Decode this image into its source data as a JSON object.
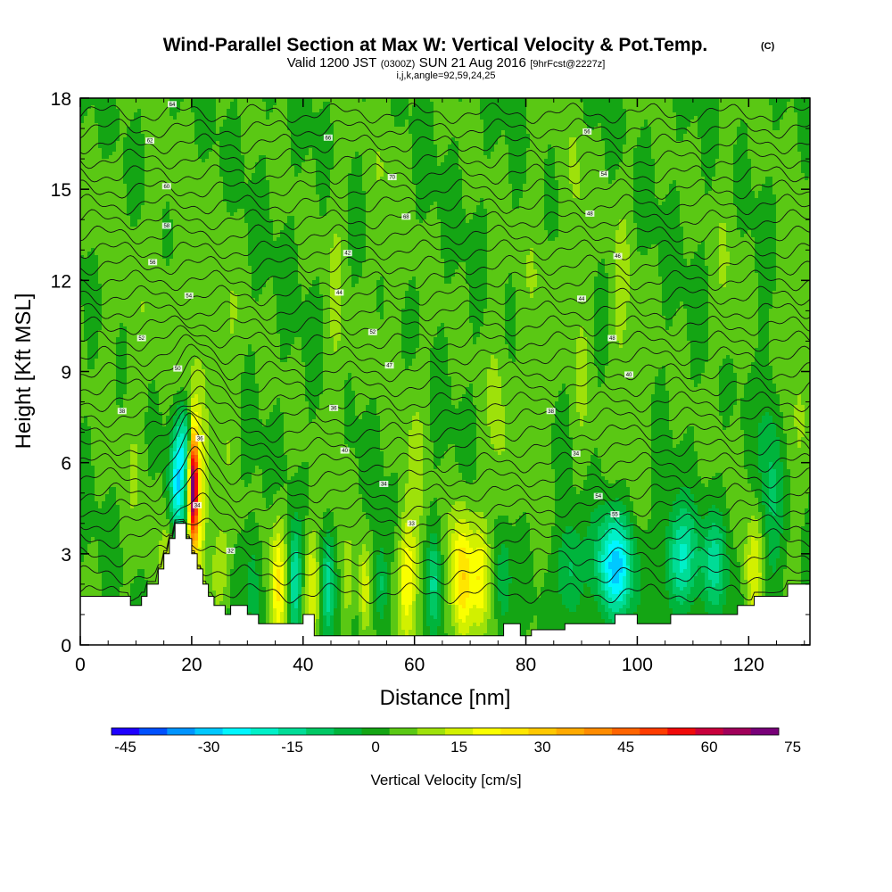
{
  "chart_data": {
    "type": "heatmap",
    "title": "Wind-Parallel Section at Max W: Vertical Velocity & Pot.Temp.",
    "title_mark": "(C)",
    "subtitle": {
      "valid": "Valid 1200 JST",
      "utc": "(0300Z)",
      "date": "SUN 21 Aug 2016",
      "fcst": "[9hrFcst@2227z]"
    },
    "params": "i,j,k,angle=92,59,24,25",
    "xlabel": "Distance [nm]",
    "ylabel": "Height [Kft MSL]",
    "xlim": [
      0,
      131
    ],
    "ylim": [
      0,
      18
    ],
    "xticks": [
      0,
      20,
      40,
      60,
      80,
      100,
      120
    ],
    "yticks": [
      0,
      3,
      6,
      9,
      12,
      15,
      18
    ],
    "grid": false,
    "background_value": 5,
    "colorbar": {
      "label": "Vertical Velocity [cm/s]",
      "min": -45,
      "step": 5,
      "ticks": [
        -45,
        -30,
        -15,
        0,
        15,
        30,
        45,
        60,
        75
      ],
      "colors": [
        "#1e00ff",
        "#0050ff",
        "#0094ff",
        "#00c8ff",
        "#00f6ff",
        "#00f0c8",
        "#00dc96",
        "#00c864",
        "#00b43c",
        "#14a514",
        "#5ac814",
        "#9ee10a",
        "#d2f000",
        "#faff00",
        "#ffe600",
        "#ffc800",
        "#ffaa00",
        "#ff8c00",
        "#ff6400",
        "#ff3c00",
        "#f00a0a",
        "#c8003c",
        "#a0005a",
        "#780078"
      ]
    },
    "velocity_features": [
      {
        "x": 5,
        "y": 12.0,
        "sx": 1.5,
        "sy": 3.5,
        "v": 8
      },
      {
        "x": 10,
        "y": 7.5,
        "sx": 1.5,
        "sy": 4.0,
        "v": 9
      },
      {
        "x": 14,
        "y": 13.0,
        "sx": 1.5,
        "sy": 3.0,
        "v": 8
      },
      {
        "x": 17.5,
        "y": 5.2,
        "sx": 1.0,
        "sy": 1.2,
        "v": -22
      },
      {
        "x": 19,
        "y": 6.8,
        "sx": 1.2,
        "sy": 0.8,
        "v": -12
      },
      {
        "x": 20.3,
        "y": 5.2,
        "sx": 0.55,
        "sy": 1.4,
        "v": 70
      },
      {
        "x": 21.5,
        "y": 4.5,
        "sx": 0.9,
        "sy": 2.0,
        "v": 22
      },
      {
        "x": 21,
        "y": 10.5,
        "sx": 2.0,
        "sy": 3.5,
        "v": 9
      },
      {
        "x": 16,
        "y": 2.8,
        "sx": 1.0,
        "sy": 0.9,
        "v": 16
      },
      {
        "x": 25,
        "y": 2.5,
        "sx": 1.2,
        "sy": 1.0,
        "v": 14
      },
      {
        "x": 26.5,
        "y": 9.5,
        "sx": 1.5,
        "sy": 3.0,
        "v": 10
      },
      {
        "x": 31,
        "y": 2.2,
        "sx": 0.9,
        "sy": 1.3,
        "v": -4
      },
      {
        "x": 35.5,
        "y": 2.0,
        "sx": 1.0,
        "sy": 1.5,
        "v": 24
      },
      {
        "x": 38.5,
        "y": 2.0,
        "sx": 0.8,
        "sy": 1.3,
        "v": -15
      },
      {
        "x": 41.5,
        "y": 2.0,
        "sx": 0.9,
        "sy": 1.3,
        "v": 20
      },
      {
        "x": 44.5,
        "y": 2.0,
        "sx": 0.8,
        "sy": 1.2,
        "v": -12
      },
      {
        "x": 46,
        "y": 10.5,
        "sx": 1.3,
        "sy": 4.5,
        "v": 10
      },
      {
        "x": 48,
        "y": 2.0,
        "sx": 0.7,
        "sy": 1.0,
        "v": 12
      },
      {
        "x": 51,
        "y": 1.8,
        "sx": 0.7,
        "sy": 1.0,
        "v": 20
      },
      {
        "x": 54,
        "y": 2.0,
        "sx": 0.8,
        "sy": 1.0,
        "v": -8
      },
      {
        "x": 55,
        "y": 14.5,
        "sx": 2.0,
        "sy": 3.0,
        "v": 9
      },
      {
        "x": 58.5,
        "y": 2.2,
        "sx": 1.1,
        "sy": 1.4,
        "v": 22
      },
      {
        "x": 60,
        "y": 5.0,
        "sx": 1.5,
        "sy": 3.0,
        "v": 11
      },
      {
        "x": 63.5,
        "y": 2.0,
        "sx": 0.9,
        "sy": 1.2,
        "v": -10
      },
      {
        "x": 68.5,
        "y": 2.2,
        "sx": 1.4,
        "sy": 1.5,
        "v": 30
      },
      {
        "x": 72,
        "y": 2.2,
        "sx": 1.1,
        "sy": 1.3,
        "v": 22
      },
      {
        "x": 75,
        "y": 7.5,
        "sx": 1.5,
        "sy": 3.0,
        "v": 11
      },
      {
        "x": 76,
        "y": 2.0,
        "sx": 1.0,
        "sy": 1.2,
        "v": -6
      },
      {
        "x": 82,
        "y": 11.0,
        "sx": 1.8,
        "sy": 4.0,
        "v": 9
      },
      {
        "x": 88,
        "y": 2.5,
        "sx": 1.6,
        "sy": 1.2,
        "v": -8
      },
      {
        "x": 89,
        "y": 14.5,
        "sx": 1.3,
        "sy": 2.5,
        "v": 10
      },
      {
        "x": 90,
        "y": 9.0,
        "sx": 1.3,
        "sy": 3.0,
        "v": 9
      },
      {
        "x": 96,
        "y": 2.6,
        "sx": 2.4,
        "sy": 1.2,
        "v": -26
      },
      {
        "x": 97,
        "y": 11.0,
        "sx": 1.4,
        "sy": 3.0,
        "v": 11
      },
      {
        "x": 100.5,
        "y": 7.5,
        "sx": 1.2,
        "sy": 2.5,
        "v": 9
      },
      {
        "x": 102,
        "y": 2.5,
        "sx": 1.4,
        "sy": 1.2,
        "v": 4
      },
      {
        "x": 108,
        "y": 2.8,
        "sx": 2.2,
        "sy": 1.2,
        "v": -16
      },
      {
        "x": 114,
        "y": 2.6,
        "sx": 1.6,
        "sy": 1.2,
        "v": -10
      },
      {
        "x": 116,
        "y": 12.5,
        "sx": 1.6,
        "sy": 3.0,
        "v": 9
      },
      {
        "x": 121,
        "y": 2.4,
        "sx": 1.2,
        "sy": 1.3,
        "v": 20
      },
      {
        "x": 124,
        "y": 5.0,
        "sx": 1.5,
        "sy": 2.5,
        "v": -6
      },
      {
        "x": 128,
        "y": 9.0,
        "sx": 2.0,
        "sy": 4.0,
        "v": 9
      }
    ],
    "terrain": [
      {
        "x": 0,
        "h": 1.6
      },
      {
        "x": 9,
        "h": 1.6
      },
      {
        "x": 9,
        "h": 1.3
      },
      {
        "x": 11,
        "h": 1.3
      },
      {
        "x": 11,
        "h": 1.6
      },
      {
        "x": 12,
        "h": 1.6
      },
      {
        "x": 12,
        "h": 2.0
      },
      {
        "x": 14,
        "h": 2.0
      },
      {
        "x": 14,
        "h": 2.5
      },
      {
        "x": 15,
        "h": 2.5
      },
      {
        "x": 15,
        "h": 3.0
      },
      {
        "x": 16,
        "h": 3.0
      },
      {
        "x": 16,
        "h": 3.5
      },
      {
        "x": 17,
        "h": 3.5
      },
      {
        "x": 17,
        "h": 4.0
      },
      {
        "x": 19,
        "h": 4.0
      },
      {
        "x": 19,
        "h": 3.5
      },
      {
        "x": 20,
        "h": 3.5
      },
      {
        "x": 20,
        "h": 3.0
      },
      {
        "x": 21,
        "h": 3.0
      },
      {
        "x": 21,
        "h": 2.5
      },
      {
        "x": 22,
        "h": 2.5
      },
      {
        "x": 22,
        "h": 2.0
      },
      {
        "x": 23,
        "h": 2.0
      },
      {
        "x": 23,
        "h": 1.6
      },
      {
        "x": 24,
        "h": 1.6
      },
      {
        "x": 24,
        "h": 1.3
      },
      {
        "x": 26,
        "h": 1.3
      },
      {
        "x": 26,
        "h": 1.0
      },
      {
        "x": 27,
        "h": 1.0
      },
      {
        "x": 27,
        "h": 1.3
      },
      {
        "x": 30,
        "h": 1.3
      },
      {
        "x": 30,
        "h": 1.0
      },
      {
        "x": 32,
        "h": 1.0
      },
      {
        "x": 32,
        "h": 0.7
      },
      {
        "x": 40,
        "h": 0.7
      },
      {
        "x": 40,
        "h": 1.0
      },
      {
        "x": 42,
        "h": 1.0
      },
      {
        "x": 42,
        "h": 0.3
      },
      {
        "x": 76,
        "h": 0.3
      },
      {
        "x": 76,
        "h": 0.7
      },
      {
        "x": 79,
        "h": 0.7
      },
      {
        "x": 79,
        "h": 0.3
      },
      {
        "x": 81,
        "h": 0.3
      },
      {
        "x": 81,
        "h": 0.5
      },
      {
        "x": 87,
        "h": 0.5
      },
      {
        "x": 87,
        "h": 0.7
      },
      {
        "x": 96,
        "h": 0.7
      },
      {
        "x": 96,
        "h": 1.0
      },
      {
        "x": 100,
        "h": 1.0
      },
      {
        "x": 100,
        "h": 0.7
      },
      {
        "x": 106,
        "h": 0.7
      },
      {
        "x": 106,
        "h": 1.0
      },
      {
        "x": 118,
        "h": 1.0
      },
      {
        "x": 118,
        "h": 1.3
      },
      {
        "x": 121,
        "h": 1.3
      },
      {
        "x": 121,
        "h": 1.6
      },
      {
        "x": 127,
        "h": 1.6
      },
      {
        "x": 127,
        "h": 2.0
      },
      {
        "x": 131,
        "h": 2.0
      }
    ],
    "isentropes": {
      "base_heights": [
        1.7,
        2.3,
        2.9,
        3.5,
        4.0,
        4.5,
        5.0,
        5.5,
        6.0,
        6.5,
        7.0,
        7.5,
        8.0,
        8.5,
        9.0,
        9.5,
        10.0,
        10.5,
        11.0,
        11.5,
        12.0,
        12.5,
        13.0,
        13.5,
        14.0,
        14.5,
        15.0,
        15.5,
        16.0,
        16.5,
        17.0,
        17.5
      ],
      "plume_center_x": 20.5,
      "plume_lift_kft": 1.5
    },
    "isentrope_labels": [
      {
        "x": 16.5,
        "y": 17.8,
        "text": "64"
      },
      {
        "x": 12.5,
        "y": 16.6,
        "text": "62"
      },
      {
        "x": 15.5,
        "y": 15.1,
        "text": "60"
      },
      {
        "x": 15.5,
        "y": 13.8,
        "text": "58"
      },
      {
        "x": 13.0,
        "y": 12.6,
        "text": "56"
      },
      {
        "x": 19.5,
        "y": 11.5,
        "text": "54"
      },
      {
        "x": 11.0,
        "y": 10.1,
        "text": "52"
      },
      {
        "x": 17.5,
        "y": 9.1,
        "text": "50"
      },
      {
        "x": 7.5,
        "y": 7.7,
        "text": "38"
      },
      {
        "x": 21.5,
        "y": 6.8,
        "text": "36"
      },
      {
        "x": 21.0,
        "y": 4.6,
        "text": "34"
      },
      {
        "x": 27.0,
        "y": 3.1,
        "text": "32"
      },
      {
        "x": 44.5,
        "y": 16.7,
        "text": "66"
      },
      {
        "x": 56.0,
        "y": 15.4,
        "text": "70"
      },
      {
        "x": 58.5,
        "y": 14.1,
        "text": "68"
      },
      {
        "x": 48.0,
        "y": 12.9,
        "text": "42"
      },
      {
        "x": 46.5,
        "y": 11.6,
        "text": "44"
      },
      {
        "x": 52.5,
        "y": 10.3,
        "text": "52"
      },
      {
        "x": 55.5,
        "y": 9.2,
        "text": "47"
      },
      {
        "x": 45.5,
        "y": 7.8,
        "text": "36"
      },
      {
        "x": 47.5,
        "y": 6.4,
        "text": "40"
      },
      {
        "x": 54.5,
        "y": 5.3,
        "text": "34"
      },
      {
        "x": 59.5,
        "y": 4.0,
        "text": "33"
      },
      {
        "x": 91.0,
        "y": 16.9,
        "text": "56"
      },
      {
        "x": 94.0,
        "y": 15.5,
        "text": "54"
      },
      {
        "x": 91.5,
        "y": 14.2,
        "text": "48"
      },
      {
        "x": 96.5,
        "y": 12.8,
        "text": "46"
      },
      {
        "x": 90.0,
        "y": 11.4,
        "text": "44"
      },
      {
        "x": 95.5,
        "y": 10.1,
        "text": "48"
      },
      {
        "x": 98.5,
        "y": 8.9,
        "text": "40"
      },
      {
        "x": 84.5,
        "y": 7.7,
        "text": "38"
      },
      {
        "x": 89.0,
        "y": 6.3,
        "text": "34"
      },
      {
        "x": 93.0,
        "y": 4.9,
        "text": "54"
      },
      {
        "x": 96.0,
        "y": 4.3,
        "text": "55"
      }
    ]
  }
}
